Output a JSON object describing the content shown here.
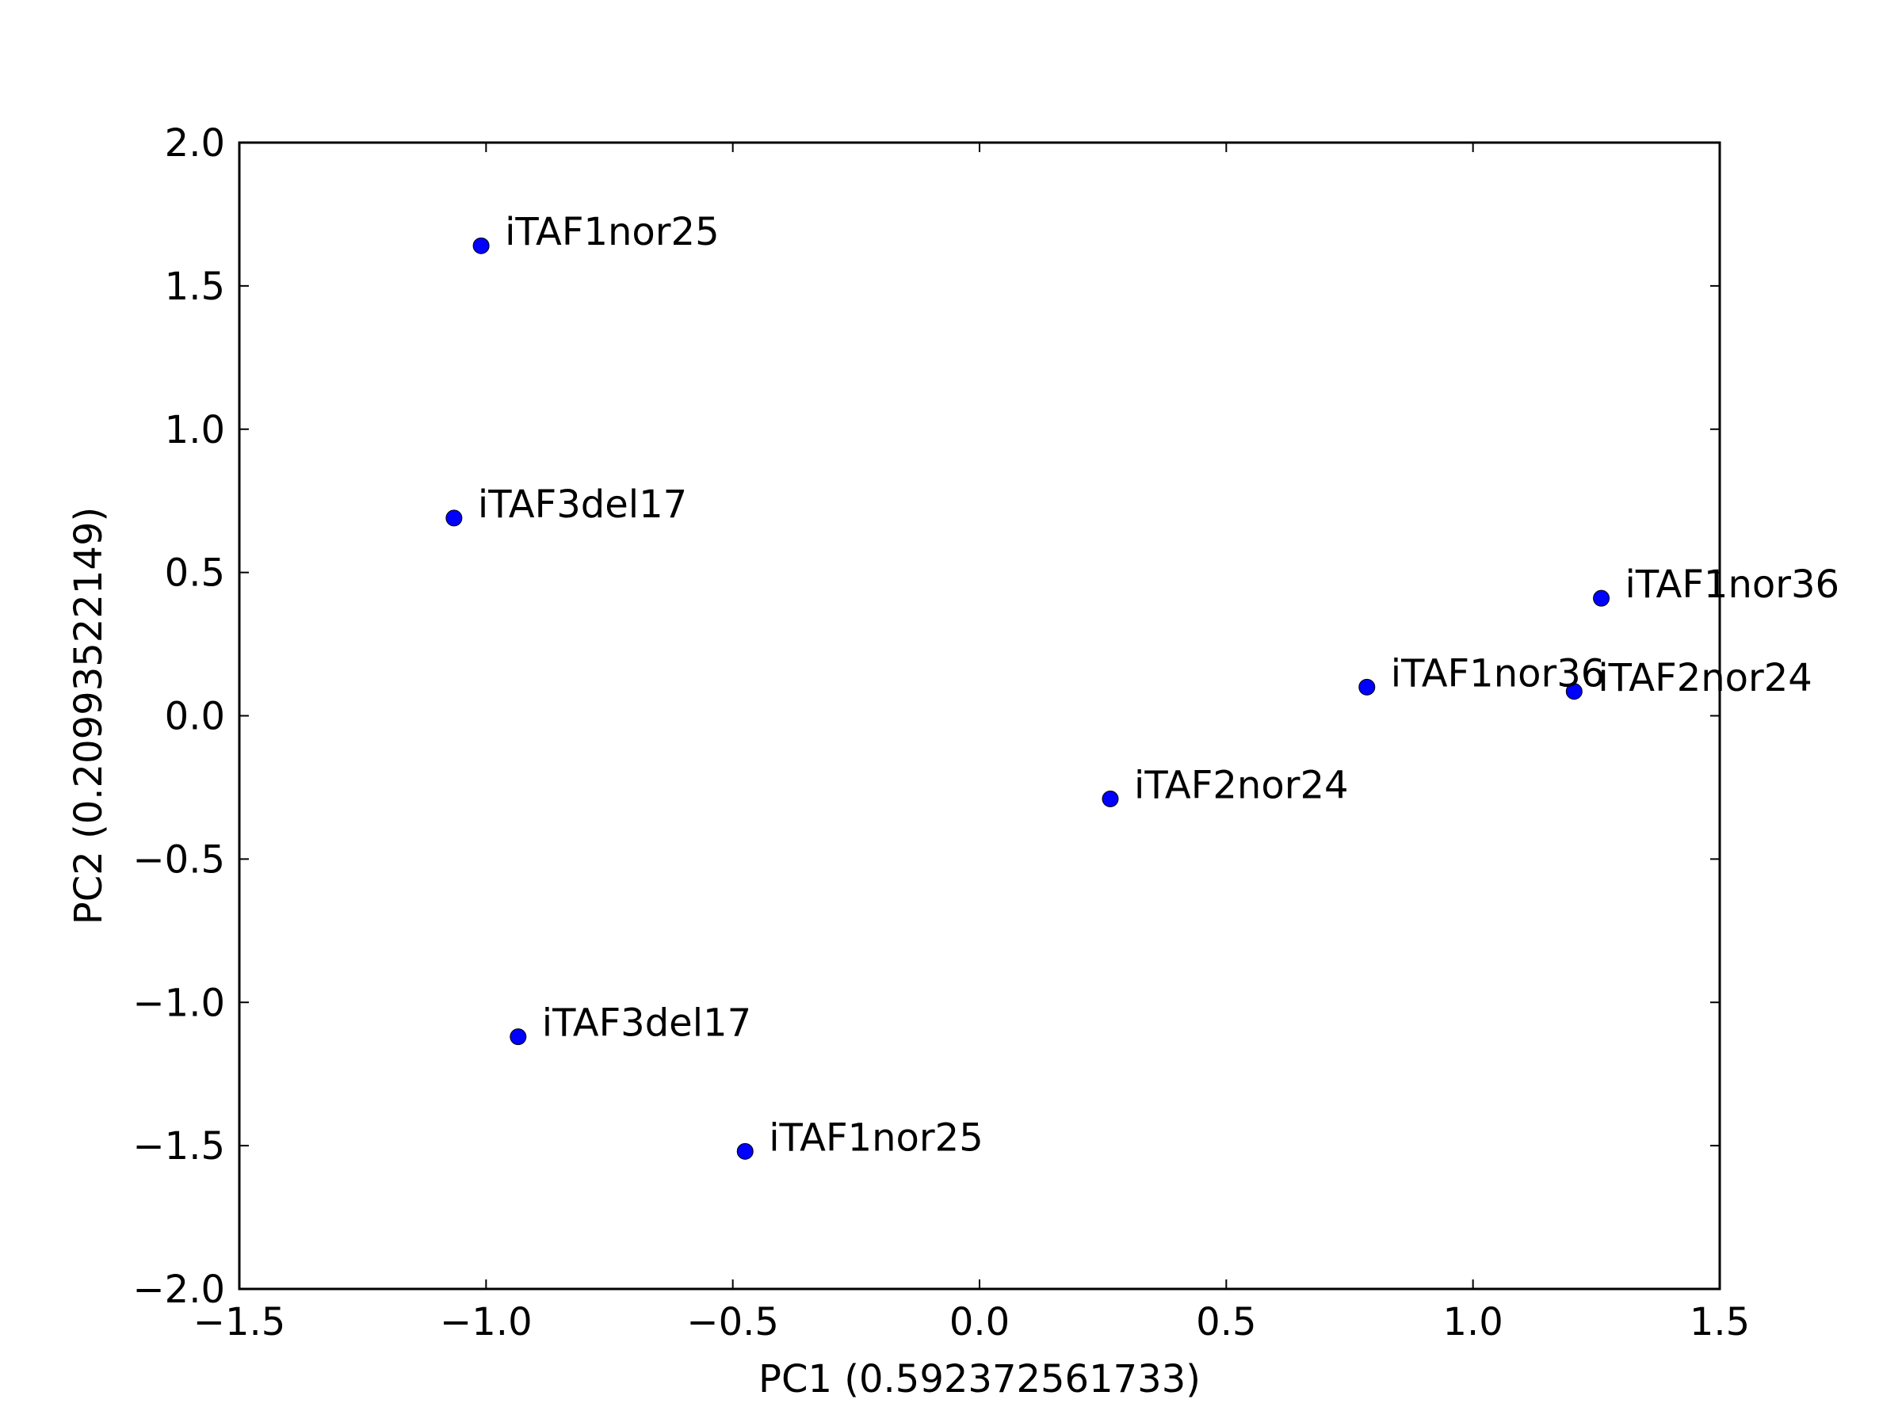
{
  "chart_data": {
    "type": "scatter",
    "title": "",
    "xlabel": "PC1 (0.592372561733)",
    "ylabel": "PC2 (0.20993522149)",
    "xlim": [
      -1.5,
      1.5
    ],
    "ylim": [
      -2.0,
      2.0
    ],
    "xticks": [
      -1.5,
      -1.0,
      -0.5,
      0.0,
      0.5,
      1.0,
      1.5
    ],
    "xtick_labels": [
      "−1.5",
      "−1.0",
      "−0.5",
      "0.0",
      "0.5",
      "1.0",
      "1.5"
    ],
    "yticks": [
      -2.0,
      -1.5,
      -1.0,
      -0.5,
      0.0,
      0.5,
      1.0,
      1.5,
      2.0
    ],
    "ytick_labels": [
      "−2.0",
      "−1.5",
      "−1.0",
      "−0.5",
      "0.0",
      "0.5",
      "1.0",
      "1.5",
      "2.0"
    ],
    "grid": false,
    "marker_color": "#0000ff",
    "points": [
      {
        "label": "iTAF1nor25",
        "x": -1.01,
        "y": 1.64
      },
      {
        "label": "iTAF3del17",
        "x": -1.065,
        "y": 0.69
      },
      {
        "label": "iTAF1nor36",
        "x": 1.26,
        "y": 0.41
      },
      {
        "label": "iTAF1nor36",
        "x": 0.785,
        "y": 0.1
      },
      {
        "label": "iTAF2nor24",
        "x": 1.205,
        "y": 0.085
      },
      {
        "label": "iTAF2nor24",
        "x": 0.265,
        "y": -0.29
      },
      {
        "label": "iTAF3del17",
        "x": -0.935,
        "y": -1.12
      },
      {
        "label": "iTAF1nor25",
        "x": -0.475,
        "y": -1.52
      }
    ]
  }
}
